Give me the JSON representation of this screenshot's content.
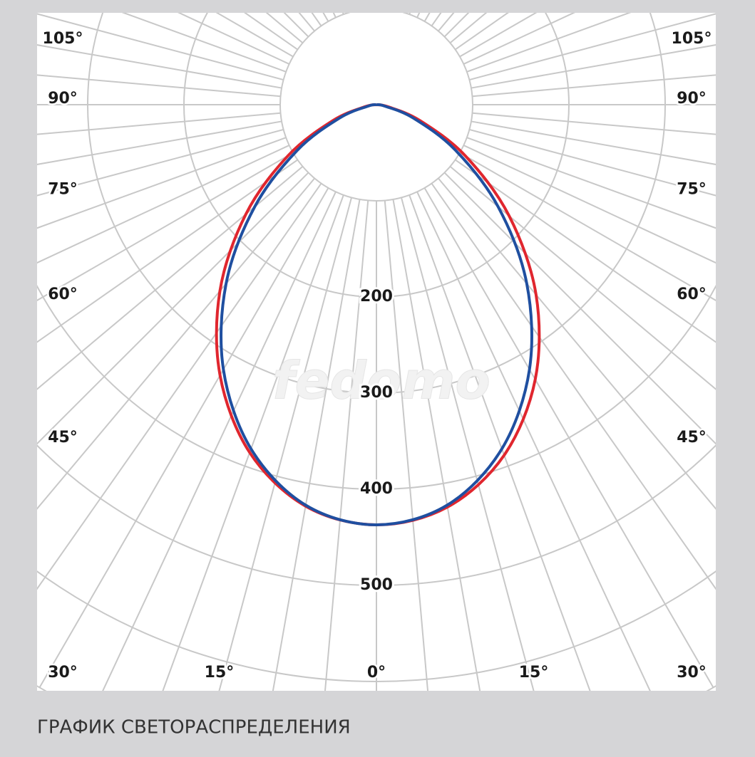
{
  "chart_data": {
    "type": "polar-line",
    "caption": "ГРАФИК СВЕТОРАСПРЕДЕЛЕНИЯ",
    "watermark": "fedomo",
    "x": [
      -90,
      -80,
      -70,
      -60,
      -50,
      -40,
      -30,
      -20,
      -10,
      0,
      10,
      20,
      30,
      40,
      50,
      60,
      70,
      80,
      90
    ],
    "series": [
      {
        "color": "#e0262e",
        "values": [
          0,
          12,
          48,
          106,
          177,
          253,
          325,
          385,
          424,
          437,
          425,
          388,
          330,
          258,
          180,
          107,
          48,
          12,
          0
        ]
      },
      {
        "color": "#1f4fa0",
        "values": [
          0,
          9,
          41,
          95,
          165,
          243,
          318,
          381,
          423,
          437,
          423,
          381,
          318,
          243,
          165,
          95,
          41,
          9,
          0
        ]
      }
    ],
    "rlim": [
      0,
      700
    ],
    "rticks": [
      200,
      300,
      400,
      500
    ],
    "angle_ticks": [
      {
        "value": -105,
        "label": "105°"
      },
      {
        "value": -90,
        "label": "90°"
      },
      {
        "value": -75,
        "label": "75°"
      },
      {
        "value": -60,
        "label": "60°"
      },
      {
        "value": -45,
        "label": "45°"
      },
      {
        "value": -30,
        "label": "30°"
      },
      {
        "value": -15,
        "label": "15°"
      },
      {
        "value": 0,
        "label": "0°"
      },
      {
        "value": 15,
        "label": "15°"
      },
      {
        "value": 30,
        "label": "30°"
      },
      {
        "value": 45,
        "label": "45°"
      },
      {
        "value": 60,
        "label": "60°"
      },
      {
        "value": 75,
        "label": "75°"
      },
      {
        "value": 90,
        "label": "90°"
      },
      {
        "value": 105,
        "label": "105°"
      }
    ],
    "angle_grid_step": 5,
    "grid": true
  }
}
